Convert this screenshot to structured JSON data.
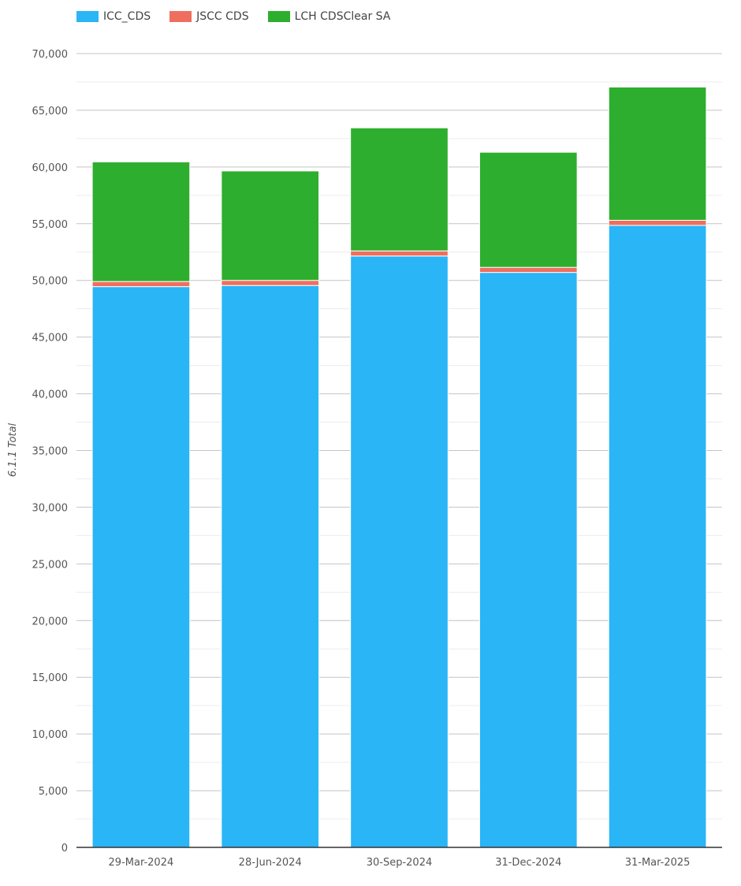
{
  "chart_data": {
    "type": "bar",
    "stacked": true,
    "categories": [
      "29-Mar-2024",
      "28-Jun-2024",
      "30-Sep-2024",
      "31-Dec-2024",
      "31-Mar-2025"
    ],
    "series": [
      {
        "name": "ICC_CDS",
        "color": "#29b5f6",
        "values": [
          49450,
          49550,
          52150,
          50700,
          54850
        ]
      },
      {
        "name": "JSCC CDS",
        "color": "#ef6f5f",
        "values": [
          450,
          450,
          450,
          450,
          450
        ]
      },
      {
        "name": "LCH CDSClear SA",
        "color": "#2eae2e",
        "values": [
          10550,
          9650,
          10850,
          10150,
          11750
        ]
      }
    ],
    "ylabel": "6.1.1 Total",
    "ylim": [
      0,
      70000
    ],
    "yticks": [
      0,
      5000,
      10000,
      15000,
      20000,
      25000,
      30000,
      35000,
      40000,
      45000,
      50000,
      55000,
      60000,
      65000,
      70000
    ],
    "ytick_labels": [
      "0",
      "5,000",
      "10,000",
      "15,000",
      "20,000",
      "25,000",
      "30,000",
      "35,000",
      "40,000",
      "45,000",
      "50,000",
      "55,000",
      "60,000",
      "65,000",
      "70,000"
    ],
    "grid": true,
    "legend_position": "top-left"
  }
}
